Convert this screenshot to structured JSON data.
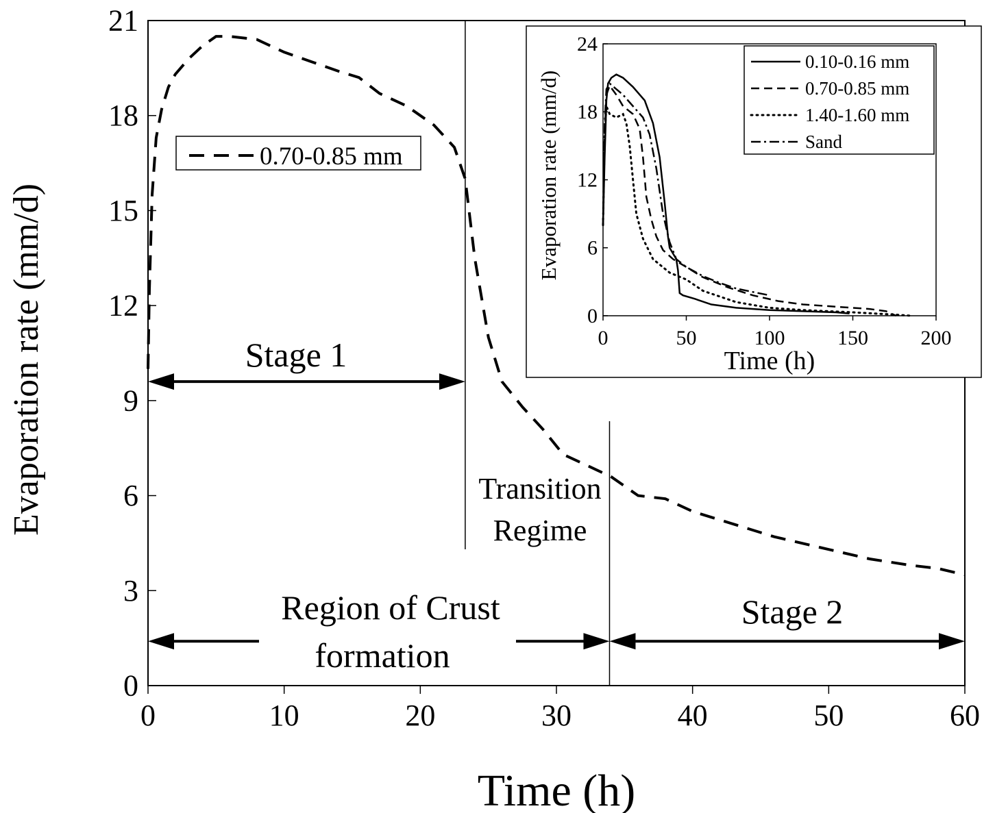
{
  "chart_data": [
    {
      "type": "line",
      "xlabel": "Time (h)",
      "ylabel": "Evaporation rate (mm/d)",
      "xlim": [
        0,
        60
      ],
      "ylim": [
        0,
        21
      ],
      "xticks": [
        "0",
        "10",
        "20",
        "30",
        "40",
        "50",
        "60"
      ],
      "yticks": [
        "0",
        "3",
        "6",
        "9",
        "12",
        "15",
        "18",
        "21"
      ],
      "grid": false,
      "legend_position": "upper-left",
      "series": [
        {
          "name": "0.70-0.85 mm",
          "style": "dashed",
          "x": [
            0,
            0.1,
            0.3,
            0.6,
            1,
            1.5,
            2,
            3,
            4,
            5,
            6,
            8,
            10,
            12,
            14,
            15.5,
            17,
            19,
            21,
            22.5,
            23.3,
            24,
            25,
            26,
            27.5,
            29,
            30.5,
            32,
            34,
            36,
            38,
            40,
            43,
            46,
            50,
            53,
            56,
            58,
            60
          ],
          "y": [
            10,
            12.5,
            15.5,
            17.3,
            18.2,
            18.9,
            19.3,
            19.8,
            20.2,
            20.5,
            20.5,
            20.4,
            20.0,
            19.7,
            19.4,
            19.2,
            18.7,
            18.3,
            17.7,
            17.0,
            16.0,
            13.5,
            11.0,
            9.6,
            8.8,
            8.1,
            7.3,
            7.0,
            6.6,
            6.0,
            5.9,
            5.5,
            5.1,
            4.7,
            4.3,
            4.0,
            3.8,
            3.7,
            3.5
          ]
        }
      ],
      "annotations": {
        "stage1": "Stage 1",
        "transition_line1": "Transition",
        "transition_line2": "Regime",
        "crust_line1": "Region of Crust",
        "crust_line2": "formation",
        "stage2": "Stage 2"
      },
      "vertical_markers_x": [
        23.3,
        33.9
      ],
      "arrows": [
        {
          "label": "Stage 1",
          "from": 0,
          "to": 23.3,
          "y": 9.6
        },
        {
          "label": "Region of Crust formation",
          "from": 0,
          "to": 33.9,
          "y": 1.4
        },
        {
          "label": "Stage 2",
          "from": 33.9,
          "to": 60,
          "y": 1.4
        }
      ]
    },
    {
      "type": "line",
      "xlabel": "Time (h)",
      "ylabel": "Evaporation rate (mm/d)",
      "xlim": [
        0,
        200
      ],
      "ylim": [
        0,
        24
      ],
      "xticks": [
        "0",
        "50",
        "100",
        "150",
        "200"
      ],
      "yticks": [
        "0",
        "6",
        "12",
        "18",
        "24"
      ],
      "grid": false,
      "legend_position": "top-right",
      "series": [
        {
          "name": "0.10-0.16 mm",
          "style": "solid",
          "x": [
            0,
            1,
            2,
            3,
            5,
            8,
            12,
            18,
            25,
            30,
            34,
            37,
            39,
            40,
            44,
            45,
            46,
            48,
            55,
            65,
            80,
            100,
            120,
            140,
            148
          ],
          "y": [
            8,
            14,
            19,
            20.5,
            21.0,
            21.3,
            21.0,
            20.2,
            19.0,
            17.0,
            14.0,
            10.0,
            7.0,
            6.0,
            5.0,
            4.0,
            2.0,
            1.8,
            1.5,
            1.0,
            0.7,
            0.5,
            0.4,
            0.3,
            0.2
          ]
        },
        {
          "name": "0.70-0.85 mm",
          "style": "dashed",
          "x": [
            0,
            1,
            2,
            4,
            8,
            12,
            18,
            22,
            24,
            26,
            29,
            32,
            36,
            42,
            50,
            60,
            75,
            90,
            105,
            120,
            140,
            160,
            170,
            176
          ],
          "y": [
            8,
            16,
            19.5,
            20.3,
            19.5,
            18.5,
            17.8,
            16.5,
            14.0,
            10.5,
            8.5,
            7.0,
            5.8,
            5.0,
            4.3,
            3.4,
            2.5,
            1.8,
            1.3,
            1.0,
            0.8,
            0.6,
            0.4,
            0.0
          ]
        },
        {
          "name": "1.40-1.60 mm",
          "style": "dotted",
          "x": [
            0,
            1,
            2,
            4,
            8,
            12,
            14,
            16,
            18,
            20,
            24,
            30,
            40,
            50,
            60,
            80,
            100,
            120,
            150,
            175,
            185
          ],
          "y": [
            8,
            16,
            18.5,
            17.8,
            17.5,
            17.8,
            17.0,
            15.0,
            12.0,
            9.0,
            6.8,
            5.0,
            3.8,
            3.2,
            2.2,
            1.2,
            0.7,
            0.5,
            0.3,
            0.1,
            0.0
          ]
        },
        {
          "name": "Sand",
          "style": "dashdot",
          "x": [
            0,
            1,
            2,
            4,
            8,
            12,
            18,
            24,
            28,
            32,
            36,
            40,
            44,
            50,
            60,
            70,
            80,
            90,
            100
          ],
          "y": [
            8,
            17,
            20.0,
            20.5,
            20.0,
            19.5,
            18.5,
            17.5,
            16.0,
            13.0,
            9.0,
            6.5,
            5.0,
            4.3,
            3.5,
            2.9,
            2.4,
            2.1,
            1.8
          ]
        }
      ]
    }
  ]
}
